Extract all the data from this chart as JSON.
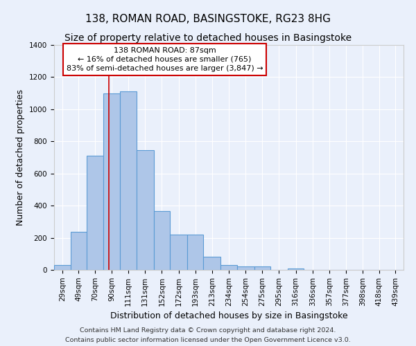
{
  "title1": "138, ROMAN ROAD, BASINGSTOKE, RG23 8HG",
  "title2": "Size of property relative to detached houses in Basingstoke",
  "xlabel": "Distribution of detached houses by size in Basingstoke",
  "ylabel": "Number of detached properties",
  "bin_labels": [
    "29sqm",
    "49sqm",
    "70sqm",
    "90sqm",
    "111sqm",
    "131sqm",
    "152sqm",
    "172sqm",
    "193sqm",
    "213sqm",
    "234sqm",
    "254sqm",
    "275sqm",
    "295sqm",
    "316sqm",
    "336sqm",
    "357sqm",
    "377sqm",
    "398sqm",
    "418sqm",
    "439sqm"
  ],
  "bin_edges": [
    19.5,
    39.5,
    59.5,
    79.5,
    100.5,
    120.5,
    141.5,
    161.5,
    182.5,
    202.5,
    223.5,
    243.5,
    264.5,
    284.5,
    305.5,
    325.5,
    346.5,
    366.5,
    387.5,
    407.5,
    427.5,
    447.5
  ],
  "bar_heights": [
    30,
    235,
    710,
    1100,
    1110,
    745,
    365,
    220,
    220,
    80,
    30,
    20,
    20,
    0,
    10,
    0,
    0,
    0,
    0,
    0,
    0
  ],
  "bar_color": "#aec6e8",
  "bar_edgecolor": "#5b9bd5",
  "vline_x": 87,
  "vline_color": "#cc0000",
  "ylim": [
    0,
    1400
  ],
  "yticks": [
    0,
    200,
    400,
    600,
    800,
    1000,
    1200,
    1400
  ],
  "annotation_text": "138 ROMAN ROAD: 87sqm\n← 16% of detached houses are smaller (765)\n83% of semi-detached houses are larger (3,847) →",
  "annotation_box_edgecolor": "#cc0000",
  "annotation_box_facecolor": "#ffffff",
  "footer1": "Contains HM Land Registry data © Crown copyright and database right 2024.",
  "footer2": "Contains public sector information licensed under the Open Government Licence v3.0.",
  "bg_color": "#eaf0fb",
  "plot_bg_color": "#eaf0fb",
  "grid_color": "#ffffff",
  "title_fontsize": 11,
  "subtitle_fontsize": 10,
  "label_fontsize": 9,
  "tick_fontsize": 7.5,
  "footer_fontsize": 6.8,
  "annotation_fontsize": 8
}
